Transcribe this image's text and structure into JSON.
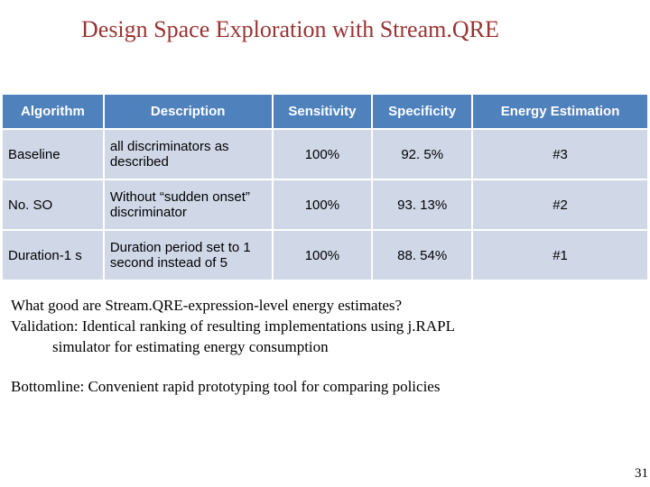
{
  "title": "Design Space Exploration with Stream.QRE",
  "table": {
    "headers": [
      "Algorithm",
      "Description",
      "Sensitivity",
      "Specificity",
      "Energy Estimation"
    ],
    "rows": [
      {
        "algo": "Baseline",
        "desc": "all discriminators as described",
        "sens": "100%",
        "spec": "92. 5%",
        "energy": "#3"
      },
      {
        "algo": "No. SO",
        "desc": "Without “sudden onset” discriminator",
        "sens": "100%",
        "spec": "93. 13%",
        "energy": "#2"
      },
      {
        "algo": "Duration-1 s",
        "desc": "Duration period set to 1 second instead of 5",
        "sens": "100%",
        "spec": "88. 54%",
        "energy": "#1"
      }
    ]
  },
  "para1_line1": "What good are Stream.QRE-expression-level energy estimates?",
  "para1_line2": "Validation: Identical ranking of resulting implementations using j.RAPL",
  "para1_line3": "simulator for estimating energy consumption",
  "para2": "Bottomline: Convenient rapid prototyping tool for comparing policies",
  "page": "31"
}
